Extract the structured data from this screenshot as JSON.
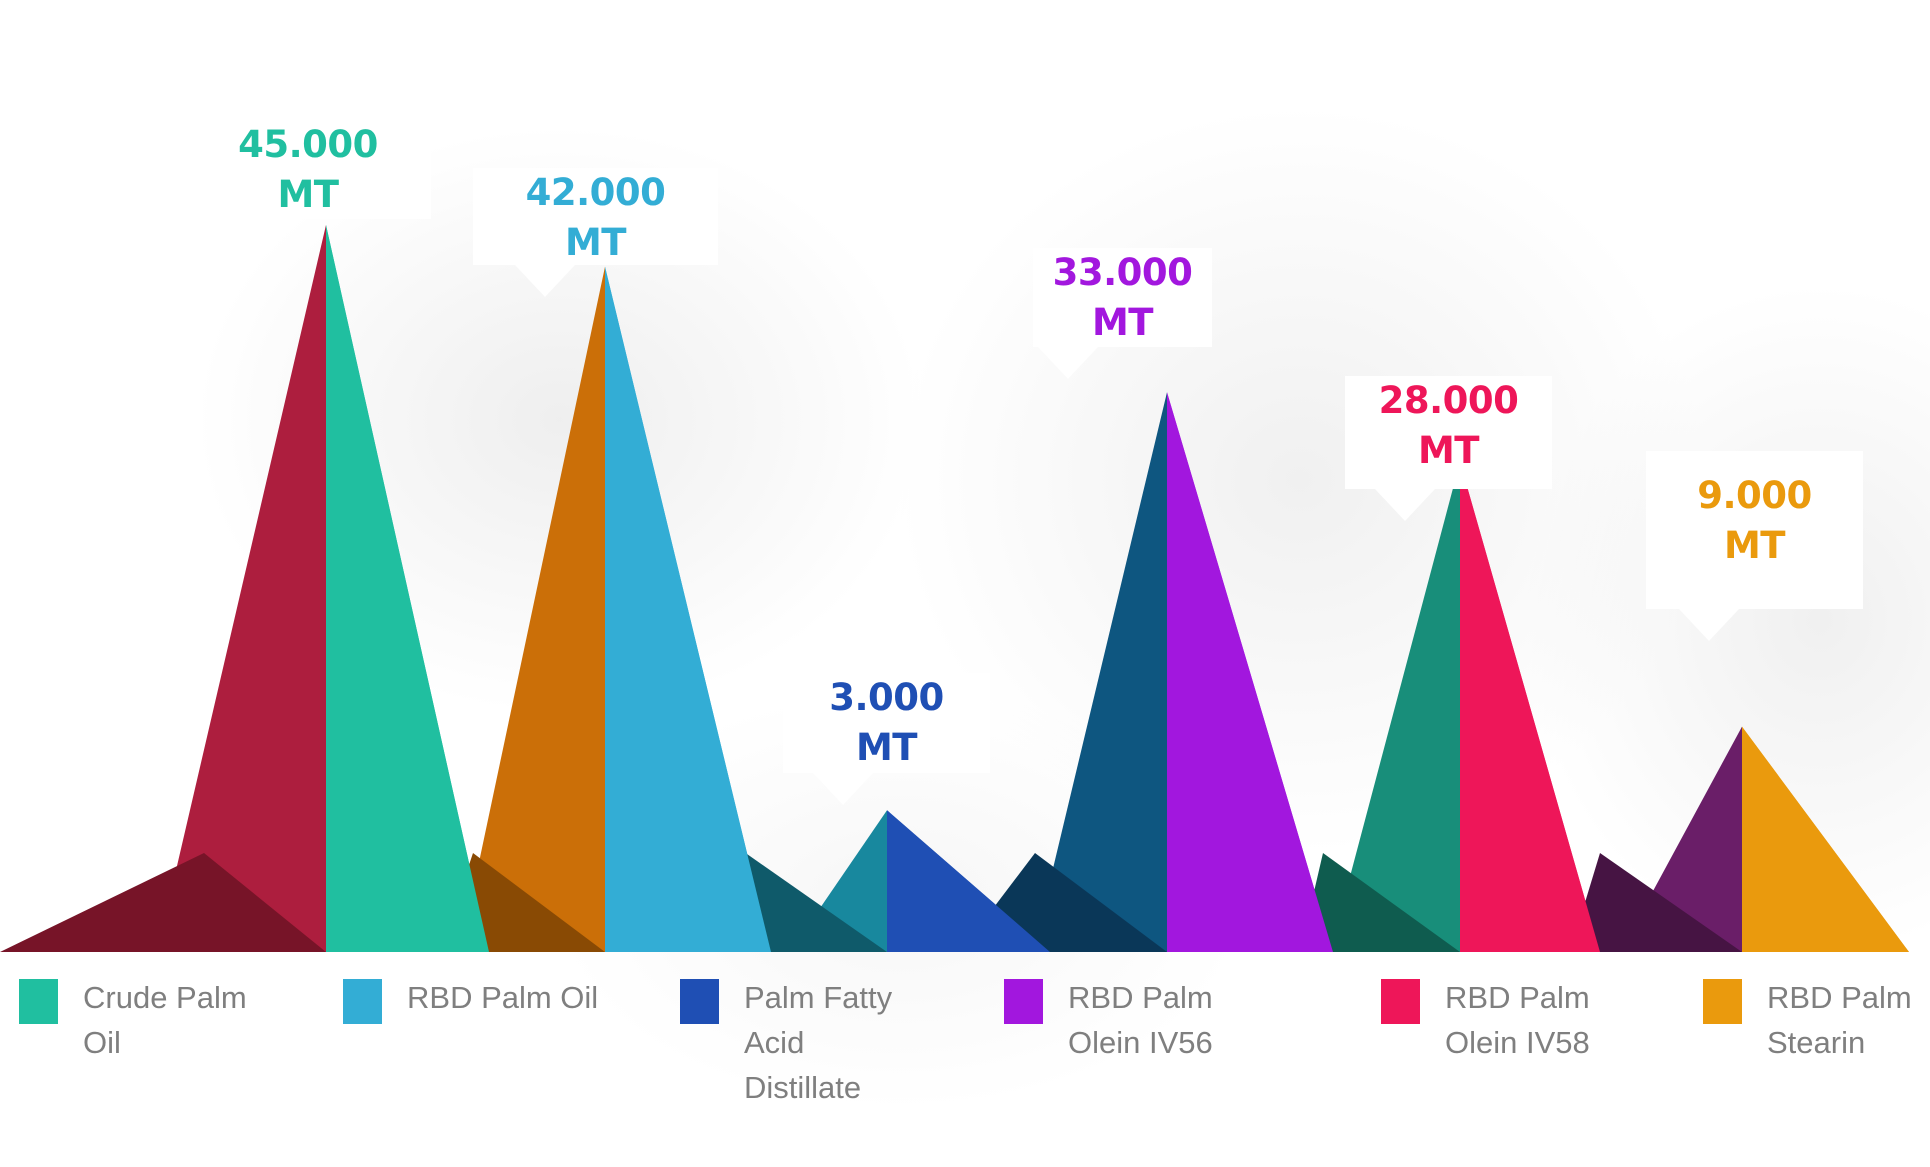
{
  "chart_data": {
    "type": "bar",
    "title": "",
    "xlabel": "",
    "ylabel": "",
    "unit": "MT",
    "ylim": [
      0,
      45000
    ],
    "grid": false,
    "legend_position": "bottom",
    "categories": [
      "Crude Palm Oil",
      "RBD Palm Oil",
      "Palm Fatty Acid Distillate",
      "RBD Palm Olein IV56",
      "RBD Palm Olein IV58",
      "RBD Palm Stearin"
    ],
    "values": [
      45000,
      42000,
      3000,
      33000,
      28000,
      9000
    ],
    "series": [
      {
        "name": "Crude Palm Oil",
        "value": 45000,
        "label_value": "45.000",
        "label_unit": "MT",
        "color": "#20bfa0",
        "shade_color": "#ad1e3e",
        "valley_color": "#771428"
      },
      {
        "name": "RBD Palm Oil",
        "value": 42000,
        "label_value": "42.000",
        "label_unit": "MT",
        "color": "#33add5",
        "shade_color": "#cb6f08",
        "valley_color": "#894a04"
      },
      {
        "name": "Palm Fatty Acid Distillate",
        "value": 3000,
        "label_value": "3.000",
        "label_unit": "MT",
        "color": "#1f4fb4",
        "shade_color": "#18889e",
        "valley_color": "#0f5a6a"
      },
      {
        "name": "RBD Palm Olein IV56",
        "value": 33000,
        "label_value": "33.000",
        "label_unit": "MT",
        "color": "#a217de",
        "shade_color": "#0e5680",
        "valley_color": "#0a3758"
      },
      {
        "name": "RBD Palm Olein IV58",
        "value": 28000,
        "label_value": "28.000",
        "label_unit": "MT",
        "color": "#ee1659",
        "shade_color": "#188e7a",
        "valley_color": "#0f5c4f"
      },
      {
        "name": "RBD Palm Stearin",
        "value": 9000,
        "label_value": "9.000",
        "label_unit": "MT",
        "color": "#ea9a0d",
        "shade_color": "#6a1e68",
        "valley_color": "#461443"
      }
    ],
    "legend": [
      {
        "label_lines": [
          "Crude Palm",
          "Oil"
        ],
        "color": "#20bfa0"
      },
      {
        "label_lines": [
          "RBD Palm Oil"
        ],
        "color": "#33add5"
      },
      {
        "label_lines": [
          "Palm Fatty",
          "Acid",
          "Distillate"
        ],
        "color": "#1f4fb4"
      },
      {
        "label_lines": [
          "RBD Palm",
          "Olein IV56"
        ],
        "color": "#a217de"
      },
      {
        "label_lines": [
          "RBD Palm",
          "Olein IV58"
        ],
        "color": "#ee1659"
      },
      {
        "label_lines": [
          "RBD Palm",
          "Stearin"
        ],
        "color": "#ea9a0d"
      }
    ]
  }
}
